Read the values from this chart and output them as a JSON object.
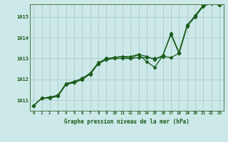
{
  "xlabel": "Graphe pression niveau de la mer (hPa)",
  "x_ticks": [
    0,
    1,
    2,
    3,
    4,
    5,
    6,
    7,
    8,
    9,
    10,
    11,
    12,
    13,
    14,
    15,
    16,
    17,
    18,
    19,
    20,
    21,
    22,
    23
  ],
  "ylim": [
    1010.5,
    1015.6
  ],
  "yticks": [
    1011,
    1012,
    1013,
    1014,
    1015
  ],
  "bg_color": "#cce8e8",
  "grid_color": "#aacccc",
  "line_color": "#1a5c1a",
  "line1": [
    1010.75,
    1011.1,
    1011.1,
    1011.2,
    1011.75,
    1011.85,
    1012.0,
    1012.28,
    1012.75,
    1013.0,
    1013.05,
    1013.1,
    1013.0,
    1013.2,
    1012.85,
    1012.58,
    1013.15,
    1014.15,
    1013.25,
    1014.55,
    1015.0,
    1015.5,
    1015.65,
    1015.55
  ],
  "line2": [
    1010.75,
    1011.1,
    1011.15,
    1011.25,
    1011.8,
    1011.9,
    1012.05,
    1012.3,
    1012.8,
    1013.0,
    1013.05,
    1013.1,
    1013.1,
    1013.2,
    1013.1,
    1012.95,
    1013.15,
    1014.2,
    1013.3,
    1014.6,
    1015.05,
    1015.55,
    1015.7,
    1015.6
  ],
  "line3": [
    1010.75,
    1011.1,
    1011.15,
    1011.2,
    1011.8,
    1011.85,
    1012.0,
    1012.25,
    1012.75,
    1012.95,
    1013.0,
    1013.0,
    1013.0,
    1013.05,
    1013.05,
    1013.0,
    1013.1,
    1013.05,
    1013.25,
    1014.55,
    1015.05,
    1015.55,
    1015.7,
    1015.55
  ]
}
